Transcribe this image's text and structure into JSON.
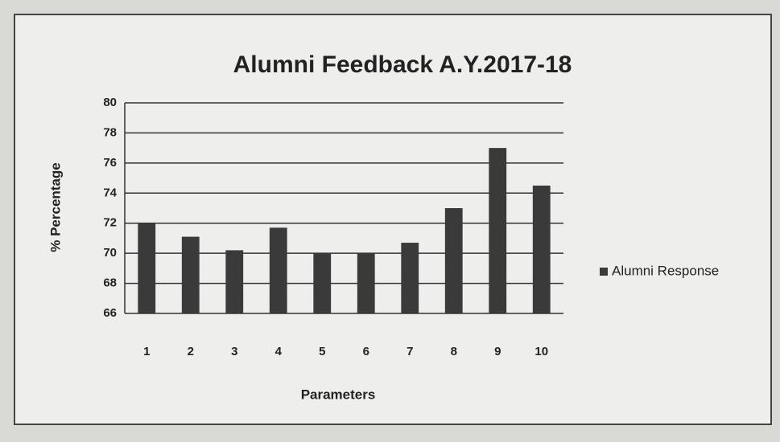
{
  "chart_data": {
    "type": "bar",
    "title": "Alumni Feedback A.Y.2017-18",
    "x_label": "Parameters",
    "y_label": "% Percentage",
    "categories": [
      "1",
      "2",
      "3",
      "4",
      "5",
      "6",
      "7",
      "8",
      "9",
      "10"
    ],
    "series": [
      {
        "name": "Alumni Response",
        "color": "#3a3a3a",
        "values": [
          72,
          71.1,
          70.2,
          71.7,
          70,
          70,
          70.7,
          73,
          77,
          74.5
        ]
      }
    ],
    "ylim": [
      66,
      80
    ],
    "yticks": [
      66,
      68,
      70,
      72,
      74,
      76,
      78,
      80
    ],
    "grid": true,
    "legend": "right"
  }
}
